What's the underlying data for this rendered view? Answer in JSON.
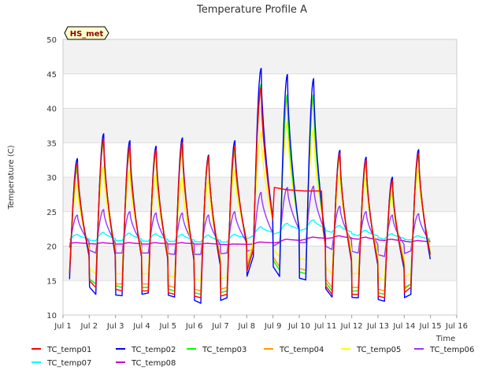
{
  "chart_data": {
    "type": "line",
    "title": "Temperature Profile A",
    "xlabel": "Time",
    "ylabel": "Temperature (C)",
    "ylim": [
      10,
      50
    ],
    "xlim": [
      1,
      16
    ],
    "yticks": [
      10,
      15,
      20,
      25,
      30,
      35,
      40,
      45,
      50
    ],
    "xticks": [
      {
        "v": 1,
        "label": "Jul 1"
      },
      {
        "v": 2,
        "label": "Jul 2"
      },
      {
        "v": 3,
        "label": "Jul 3"
      },
      {
        "v": 4,
        "label": "Jul 4"
      },
      {
        "v": 5,
        "label": "Jul 5"
      },
      {
        "v": 6,
        "label": "Jul 6"
      },
      {
        "v": 7,
        "label": "Jul 7"
      },
      {
        "v": 8,
        "label": "Jul 8"
      },
      {
        "v": 9,
        "label": "Jul 9"
      },
      {
        "v": 10,
        "label": "Jul 10"
      },
      {
        "v": 11,
        "label": "Jul 11"
      },
      {
        "v": 12,
        "label": "Jul 12"
      },
      {
        "v": 13,
        "label": "Jul 13"
      },
      {
        "v": 14,
        "label": "Jul 14"
      },
      {
        "v": 15,
        "label": "Jul 15"
      },
      {
        "v": 16,
        "label": "Jul 16"
      }
    ],
    "grid": true,
    "background_bands": true,
    "annotation": "HS_met",
    "legend_position": "bottom",
    "x_unit": "day of July",
    "daily_peak_day_offset": 0.55,
    "series": [
      {
        "name": "TC_temp01",
        "color": "#ff0000",
        "daily_max": [
          32.0,
          35.5,
          34.5,
          34.0,
          35.0,
          33.0,
          34.5,
          43.0,
          39.0,
          39.0,
          33.5,
          32.5,
          29.5,
          33.5
        ],
        "daily_min": [
          16.0,
          14.0,
          13.5,
          13.5,
          13.0,
          12.5,
          13.0,
          19.5,
          16.0,
          15.5,
          13.0,
          13.0,
          12.5,
          14.0
        ],
        "gap": [
          9.0,
          10.9
        ],
        "gap_values": [
          28.5,
          28.2,
          28.0,
          28.0
        ]
      },
      {
        "name": "TC_temp02",
        "color": "#0000ff",
        "daily_max": [
          32.7,
          36.3,
          35.3,
          34.5,
          35.7,
          33.2,
          35.3,
          45.8,
          44.9,
          44.3,
          33.9,
          32.9,
          30.0,
          34.0
        ],
        "daily_min": [
          15.2,
          13.0,
          12.8,
          13.2,
          12.6,
          11.7,
          12.5,
          18.5,
          15.6,
          15.1,
          12.6,
          12.5,
          12.0,
          13.0
        ]
      },
      {
        "name": "TC_temp03",
        "color": "#00ff00",
        "daily_max": [
          31.5,
          35.0,
          34.0,
          33.5,
          34.5,
          32.5,
          34.0,
          43.5,
          42.0,
          42.0,
          33.0,
          32.0,
          29.0,
          33.0
        ],
        "daily_min": [
          16.0,
          14.5,
          14.0,
          14.0,
          13.5,
          13.0,
          13.5,
          19.5,
          16.5,
          16.0,
          13.5,
          13.5,
          13.0,
          14.5
        ]
      },
      {
        "name": "TC_temp04",
        "color": "#ff9900",
        "daily_max": [
          31.0,
          35.0,
          33.5,
          33.5,
          34.0,
          32.5,
          33.5,
          42.5,
          41.5,
          41.5,
          33.0,
          32.0,
          29.5,
          33.0
        ],
        "daily_min": [
          16.0,
          14.5,
          14.5,
          14.5,
          14.0,
          13.5,
          14.0,
          20.0,
          17.0,
          16.5,
          14.0,
          14.0,
          13.5,
          14.5
        ]
      },
      {
        "name": "TC_temp05",
        "color": "#ffff00",
        "daily_max": [
          29.0,
          31.5,
          31.0,
          30.5,
          30.0,
          29.5,
          31.0,
          36.5,
          38.0,
          37.0,
          30.5,
          30.0,
          27.5,
          31.0
        ],
        "daily_min": [
          17.5,
          16.0,
          16.0,
          16.0,
          15.5,
          15.0,
          15.5,
          20.5,
          18.5,
          18.0,
          16.0,
          16.0,
          15.0,
          16.0
        ]
      },
      {
        "name": "TC_temp06",
        "color": "#9933ff",
        "daily_max": [
          24.5,
          25.3,
          25.0,
          24.8,
          24.8,
          24.5,
          25.0,
          27.8,
          28.5,
          28.7,
          25.8,
          25.0,
          24.5,
          24.7
        ],
        "daily_min": [
          19.8,
          19.0,
          19.0,
          19.0,
          18.8,
          18.8,
          19.0,
          19.5,
          20.5,
          20.5,
          19.5,
          19.0,
          18.5,
          19.3
        ]
      },
      {
        "name": "TC_temp07",
        "color": "#00ffff",
        "daily_max": [
          21.7,
          22.0,
          21.9,
          21.8,
          21.7,
          21.6,
          21.7,
          22.8,
          23.3,
          23.8,
          23.0,
          22.3,
          21.8,
          21.5
        ],
        "daily_min": [
          20.9,
          20.8,
          20.8,
          20.7,
          20.7,
          20.6,
          20.6,
          21.5,
          22.0,
          22.5,
          22.0,
          21.5,
          21.0,
          20.9
        ]
      },
      {
        "name": "TC_temp08",
        "color": "#cc00cc",
        "daily_max": [
          20.5,
          20.5,
          20.5,
          20.5,
          20.5,
          20.4,
          20.3,
          20.6,
          21.0,
          21.3,
          21.5,
          21.3,
          21.0,
          20.8
        ],
        "daily_min": [
          20.4,
          20.3,
          20.3,
          20.3,
          20.3,
          20.3,
          20.2,
          20.3,
          20.6,
          21.0,
          21.2,
          21.0,
          20.8,
          20.6
        ]
      }
    ]
  }
}
